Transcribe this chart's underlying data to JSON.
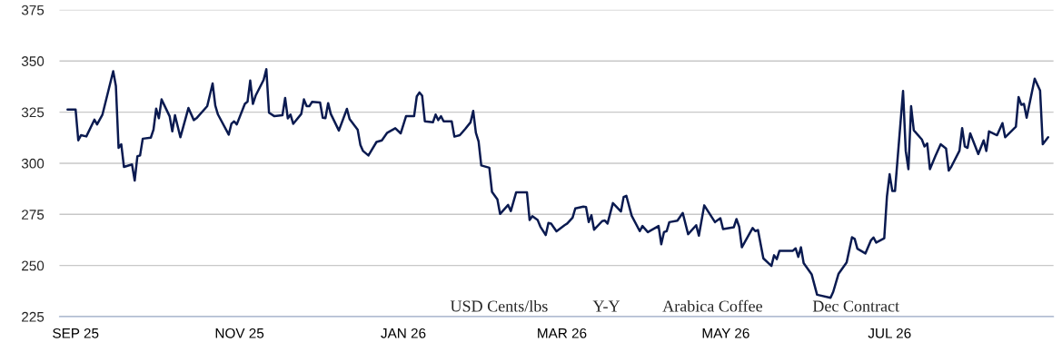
{
  "chart_data": {
    "type": "line",
    "x": [
      "2025-08-29",
      "2025-09-01",
      "2025-09-02",
      "2025-09-03",
      "2025-09-05",
      "2025-09-08",
      "2025-09-09",
      "2025-09-11",
      "2025-09-15",
      "2025-09-16",
      "2025-09-17",
      "2025-09-18",
      "2025-09-19",
      "2025-09-22",
      "2025-09-23",
      "2025-09-24",
      "2025-09-25",
      "2025-09-26",
      "2025-09-29",
      "2025-09-30",
      "2025-10-01",
      "2025-10-02",
      "2025-10-03",
      "2025-10-06",
      "2025-10-07",
      "2025-10-08",
      "2025-10-10",
      "2025-10-13",
      "2025-10-15",
      "2025-10-16",
      "2025-10-20",
      "2025-10-22",
      "2025-10-23",
      "2025-10-24",
      "2025-10-28",
      "2025-10-29",
      "2025-10-30",
      "2025-10-31",
      "2025-11-03",
      "2025-11-04",
      "2025-11-05",
      "2025-11-06",
      "2025-11-07",
      "2025-11-10",
      "2025-11-11",
      "2025-11-12",
      "2025-11-14",
      "2025-11-17",
      "2025-11-18",
      "2025-11-19",
      "2025-11-20",
      "2025-11-21",
      "2025-11-24",
      "2025-11-25",
      "2025-11-26",
      "2025-11-27",
      "2025-11-28",
      "2025-12-01",
      "2025-12-02",
      "2025-12-03",
      "2025-12-04",
      "2025-12-05",
      "2025-12-08",
      "2025-12-11",
      "2025-12-12",
      "2025-12-15",
      "2025-12-16",
      "2025-12-17",
      "2025-12-19",
      "2025-12-22",
      "2025-12-24",
      "2025-12-26",
      "2025-12-29",
      "2025-12-31",
      "2026-01-02",
      "2026-01-05",
      "2026-01-06",
      "2026-01-07",
      "2026-01-08",
      "2026-01-09",
      "2026-01-12",
      "2026-01-13",
      "2026-01-14",
      "2026-01-15",
      "2026-01-16",
      "2026-01-19",
      "2026-01-20",
      "2026-01-22",
      "2026-01-24",
      "2026-01-26",
      "2026-01-27",
      "2026-01-28",
      "2026-01-29",
      "2026-01-30",
      "2026-02-02",
      "2026-02-03",
      "2026-02-05",
      "2026-02-06",
      "2026-02-09",
      "2026-02-10",
      "2026-02-12",
      "2026-02-16",
      "2026-02-17",
      "2026-02-18",
      "2026-02-20",
      "2026-02-21",
      "2026-02-23",
      "2026-02-24",
      "2026-02-25",
      "2026-02-27",
      "2026-03-02",
      "2026-03-03",
      "2026-03-05",
      "2026-03-06",
      "2026-03-09",
      "2026-03-10",
      "2026-03-11",
      "2026-03-12",
      "2026-03-13",
      "2026-03-16",
      "2026-03-17",
      "2026-03-18",
      "2026-03-20",
      "2026-03-23",
      "2026-03-24",
      "2026-03-25",
      "2026-03-27",
      "2026-03-30",
      "2026-03-31",
      "2026-04-02",
      "2026-04-06",
      "2026-04-07",
      "2026-04-08",
      "2026-04-09",
      "2026-04-10",
      "2026-04-13",
      "2026-04-15",
      "2026-04-17",
      "2026-04-20",
      "2026-04-21",
      "2026-04-23",
      "2026-04-27",
      "2026-04-29",
      "2026-04-30",
      "2026-05-04",
      "2026-05-05",
      "2026-05-06",
      "2026-05-07",
      "2026-05-11",
      "2026-05-12",
      "2026-05-13",
      "2026-05-15",
      "2026-05-18",
      "2026-05-19",
      "2026-05-20",
      "2026-05-21",
      "2026-05-26",
      "2026-05-27",
      "2026-05-28",
      "2026-05-29",
      "2026-05-30",
      "2026-06-02",
      "2026-06-04",
      "2026-06-09",
      "2026-06-10",
      "2026-06-12",
      "2026-06-15",
      "2026-06-17",
      "2026-06-18",
      "2026-06-19",
      "2026-06-22",
      "2026-06-24",
      "2026-06-25",
      "2026-06-26",
      "2026-06-29",
      "2026-06-30",
      "2026-07-01",
      "2026-07-02",
      "2026-07-03",
      "2026-07-06",
      "2026-07-07",
      "2026-07-08",
      "2026-07-09",
      "2026-07-10",
      "2026-07-13",
      "2026-07-14",
      "2026-07-15",
      "2026-07-16",
      "2026-07-18",
      "2026-07-20",
      "2026-07-22",
      "2026-07-23",
      "2026-07-24",
      "2026-07-27",
      "2026-07-28",
      "2026-07-29",
      "2026-07-30",
      "2026-07-31",
      "2026-08-03",
      "2026-08-05",
      "2026-08-06",
      "2026-08-07",
      "2026-08-10",
      "2026-08-12",
      "2026-08-13",
      "2026-08-17",
      "2026-08-18",
      "2026-08-19",
      "2026-08-20",
      "2026-08-21",
      "2026-08-24",
      "2026-08-26",
      "2026-08-27",
      "2026-08-29"
    ],
    "series": [
      {
        "color": "#0a1a50",
        "values": [
          326.3,
          326.3,
          311.2,
          313.7,
          313.1,
          321.3,
          319,
          323.8,
          345,
          337.8,
          307.5,
          309.3,
          298.2,
          299.4,
          291.5,
          303.4,
          303.8,
          312,
          312.5,
          316.4,
          326.7,
          322,
          331.2,
          323,
          315.6,
          323.5,
          312.7,
          327,
          321.1,
          322,
          327.9,
          339,
          328.2,
          323.8,
          314,
          319.3,
          320.5,
          319,
          329,
          330.1,
          340.4,
          329,
          333,
          340.8,
          346,
          324.7,
          323,
          323.5,
          331.9,
          321.9,
          323.8,
          319.3,
          324.1,
          331.2,
          327.9,
          327.9,
          330,
          329.7,
          322.3,
          322,
          329.4,
          324.1,
          316,
          326.6,
          321.6,
          316.4,
          309,
          306,
          303.8,
          310.4,
          311.2,
          314.9,
          317.1,
          314.6,
          323,
          323,
          332.7,
          334.6,
          333,
          320.5,
          320,
          323.8,
          321.1,
          323,
          320.5,
          320.5,
          313,
          313.7,
          316.7,
          320,
          325.6,
          314.9,
          310.7,
          298.9,
          297.8,
          286,
          282.3,
          275.2,
          279.6,
          276.6,
          285.8,
          285.8,
          272.2,
          274.1,
          272.2,
          269,
          264.9,
          270.8,
          270.5,
          266.7,
          269.7,
          270.5,
          273.4,
          277.9,
          278.8,
          278.6,
          271.2,
          274.6,
          267.5,
          271.7,
          272,
          270.5,
          280.5,
          276.4,
          283.5,
          284.1,
          274.3,
          266.8,
          269.3,
          266.3,
          269.3,
          260.4,
          266.3,
          266.8,
          271.2,
          271.9,
          275.7,
          265.3,
          269.7,
          264.6,
          279.4,
          271.2,
          273.1,
          267.8,
          268.7,
          272.7,
          269,
          258.9,
          268.3,
          266.8,
          267.3,
          253.5,
          249.8,
          255,
          253.1,
          257.2,
          257.2,
          258.4,
          254.2,
          258.9,
          251.2,
          245.6,
          235.7,
          234.2,
          237.1,
          246,
          251.5,
          263.8,
          263,
          258.2,
          255.9,
          262.2,
          263.7,
          261.2,
          263.3,
          283.7,
          294.6,
          286.4,
          286.4,
          335.3,
          306,
          297.1,
          327.9,
          316.1,
          311.6,
          308.2,
          309.7,
          297.1,
          303.4,
          309.3,
          307.2,
          296.4,
          298.4,
          306.1,
          317.2,
          308.2,
          307.5,
          314.6,
          304.5,
          311.2,
          306,
          315.6,
          313.7,
          319.6,
          312.7,
          317.9,
          332.4,
          328.6,
          329,
          322.3,
          341.3,
          335.6,
          309.3,
          312.7
        ]
      }
    ],
    "xlim": [
      "2025-08-26",
      "2026-08-31"
    ],
    "xticks": [
      {
        "value": "2025-09-01",
        "label": "SEP 25"
      },
      {
        "value": "2025-11-01",
        "label": "NOV 25"
      },
      {
        "value": "2026-01-01",
        "label": "JAN 26"
      },
      {
        "value": "2026-03-01",
        "label": "MAR 26"
      },
      {
        "value": "2026-05-01",
        "label": "MAY 26"
      },
      {
        "value": "2026-07-01",
        "label": "JUL 26"
      }
    ],
    "ylim": [
      225,
      375
    ],
    "yticks": [
      225,
      250,
      275,
      300,
      325,
      350,
      375
    ],
    "grid": "y",
    "annotations": [
      "USD Cents/lbs",
      "Y-Y",
      "Arabica Coffee",
      "Dec Contract"
    ]
  }
}
